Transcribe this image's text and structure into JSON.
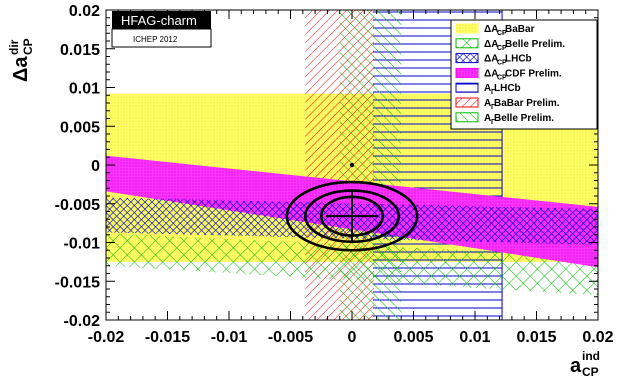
{
  "chart_data": {
    "type": "scatter",
    "x_tick_labels": [
      "-0.02",
      "-0.015",
      "-0.01",
      "-0.005",
      "0",
      "0.005",
      "0.01",
      "0.015",
      "0.02"
    ],
    "y_tick_labels": [
      "0.02",
      "0.015",
      "0.01",
      "0.005",
      "0",
      "-0.005",
      "-0.01",
      "-0.015",
      "-0.02"
    ],
    "xlim": [
      -0.02,
      0.02
    ],
    "ylim": [
      -0.02,
      0.02
    ],
    "xlabel": {
      "main": "a",
      "sup": "ind",
      "sub": "CP"
    },
    "ylabel": {
      "main": "Δa",
      "sup": "dir",
      "sub": "CP"
    },
    "logo": {
      "label": "HFAG-charm",
      "subtitle": "ICHEP 2012"
    },
    "legend": [
      {
        "label": "ΔA",
        "sub": "CP",
        "rest": " BaBar",
        "style": "yellow-fill"
      },
      {
        "label": "ΔA",
        "sub": "CP",
        "rest": " Belle Prelim.",
        "style": "green-crosshatch"
      },
      {
        "label": "ΔA",
        "sub": "CP",
        "rest": " LHCb",
        "style": "blue-crosshatch"
      },
      {
        "label": "ΔA",
        "sub": "CP",
        "rest": " CDF Prelim.",
        "style": "magenta-fill"
      },
      {
        "label": "A",
        "sub": "Γ",
        "rest": " LHCb",
        "style": "blue-horizontal"
      },
      {
        "label": "A",
        "sub": "Γ",
        "rest": " BaBar Prelim.",
        "style": "red-diagonal"
      },
      {
        "label": "A",
        "sub": "Γ",
        "rest": " Belle Prelim.",
        "style": "green-diagonal"
      }
    ],
    "bands": {
      "babar_deltaAcp": {
        "y_range": [
          -0.0125,
          0.0092
        ],
        "x_range": [
          -0.02,
          0.02
        ]
      },
      "ag_lhcb": {
        "x_range": [
          0.0017,
          0.0122
        ],
        "y_range": [
          -0.02,
          0.02
        ]
      },
      "ag_babar": {
        "x_range": [
          -0.0038,
          0.0018
        ],
        "y_range": [
          -0.02,
          0.02
        ]
      },
      "ag_belle": {
        "x_range": [
          -0.001,
          0.004
        ],
        "y_range": [
          -0.02,
          0.02
        ]
      },
      "cdf_deltaAcp": {
        "left_y": [
          -0.0034,
          0.0012
        ],
        "right_y": [
          -0.0132,
          -0.0054
        ]
      },
      "lhcb_deltaAcp": {
        "left_y": [
          -0.0087,
          -0.0042
        ],
        "right_y": [
          -0.0103,
          -0.0057
        ]
      },
      "belle_deltaAcp": {
        "left_y": [
          -0.013,
          -0.0088
        ],
        "right_y": [
          -0.0168,
          -0.0118
        ]
      }
    },
    "no_cpv_point": {
      "x": 0,
      "y": 0
    },
    "best_fit": {
      "x": 0.0,
      "y": -0.0066
    },
    "contours": [
      {
        "rx": 0.0025,
        "ry": 0.0025,
        "level": "1 sigma"
      },
      {
        "rx": 0.0038,
        "ry": 0.0033,
        "level": "2 sigma"
      },
      {
        "rx": 0.0053,
        "ry": 0.0044,
        "level": "3 sigma"
      }
    ],
    "colors": {
      "yellow": "#ffff66",
      "magenta": "#ff00ff",
      "blue": "#0000cc",
      "red": "#ff0000",
      "green": "#00bb00",
      "logo_bg": "#000000",
      "logo_text": "#ffffff"
    }
  }
}
